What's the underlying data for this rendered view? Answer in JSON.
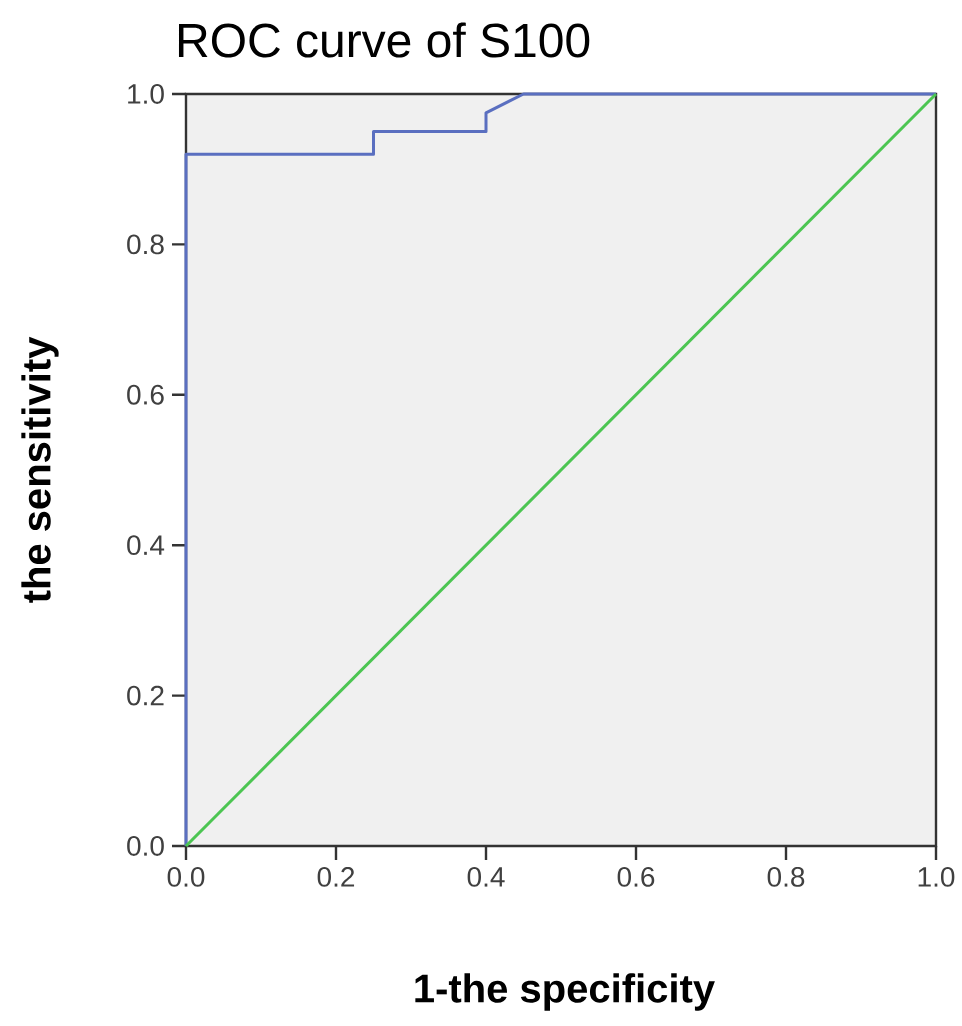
{
  "chart_data": {
    "type": "line",
    "title": "ROC curve of S100",
    "xlabel": "1-the specificity",
    "ylabel": "the sensitivity",
    "xlim": [
      0,
      1
    ],
    "ylim": [
      0,
      1
    ],
    "xticks": [
      {
        "value": 0,
        "label": "0.0"
      },
      0.2,
      0.4,
      0.6,
      0.8,
      {
        "value": 1,
        "label": "1.0"
      }
    ],
    "yticks": [
      {
        "value": 0,
        "label": "0.0"
      },
      0.2,
      0.4,
      0.6,
      0.8,
      {
        "value": 1,
        "label": "1.0"
      }
    ],
    "marker": "none",
    "line_style": "solid",
    "series": [
      {
        "color": "#5a6fc0",
        "x": [
          0,
          0,
          0.25,
          0.25,
          0.4,
          0.4,
          0.45,
          1
        ],
        "values": [
          0,
          0.92,
          0.92,
          0.95,
          0.95,
          0.975,
          1,
          1
        ]
      },
      {
        "color": "#4cc552",
        "x": [
          0,
          1
        ],
        "values": [
          0,
          1
        ]
      }
    ]
  }
}
